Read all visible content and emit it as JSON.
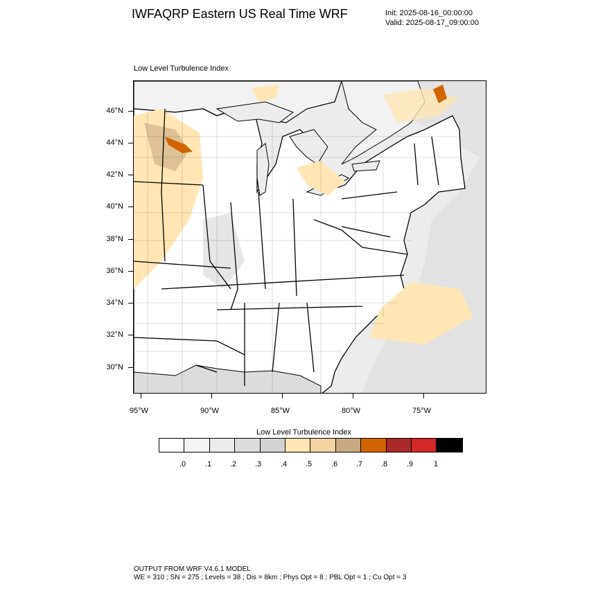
{
  "header": {
    "title": "IWFAQRP Eastern US Real Time WRF",
    "init": "Init: 2025-08-16_00:00:00",
    "valid": "Valid: 2025-08-17_09:00:00"
  },
  "map": {
    "subtitle": "Low Level Turbulence Index",
    "lat_labels": [
      "46°N",
      "44°N",
      "42°N",
      "40°N",
      "38°N",
      "36°N",
      "34°N",
      "32°N",
      "30°N"
    ],
    "lon_labels": [
      "95°W",
      "90°W",
      "85°W",
      "80°W",
      "75°W"
    ],
    "land_color": "#ffffff",
    "water_color": "#ececec",
    "boundary_color": "#000000"
  },
  "colorbar": {
    "title": "Low Level Turbulence Index",
    "colors": [
      "#ffffff",
      "#f5f5f5",
      "#ebebeb",
      "#dcdcdc",
      "#d2d2d2",
      "#ffe6b4",
      "#f5d2a0",
      "#c8aa82",
      "#d26400",
      "#aa2828",
      "#d22828",
      "#000000"
    ],
    "labels": [
      ".0",
      ".1",
      ".2",
      ".3",
      ".4",
      ".5",
      ".6",
      ".7",
      ".8",
      ".9",
      "1"
    ]
  },
  "footer": {
    "line1": "OUTPUT FROM WRF V4.6.1 MODEL",
    "line2": "WE = 310 ; SN = 275 ; Levels = 38 ; Dis = 8km ; Phys Opt = 8 ; PBL Opt = 1 ; Cu Opt = 3"
  }
}
